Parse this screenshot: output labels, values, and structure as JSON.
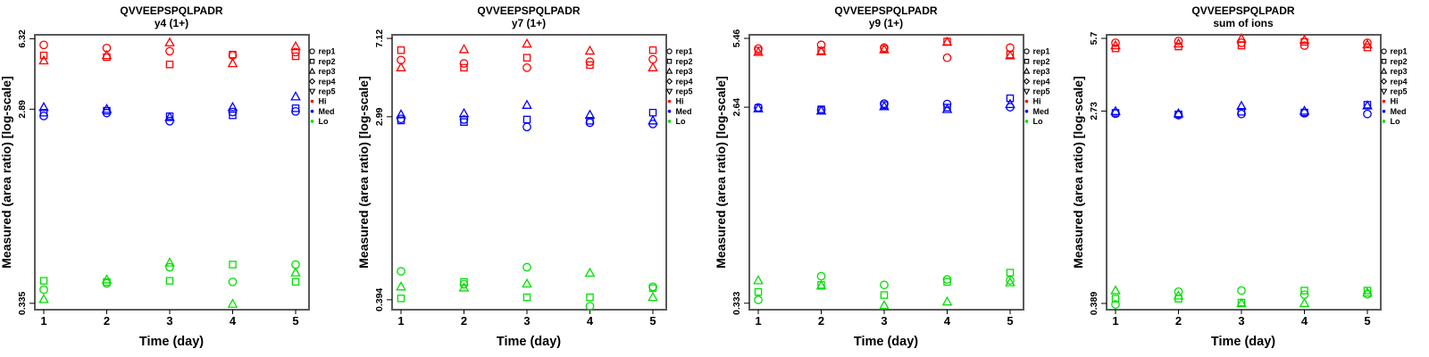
{
  "figure": {
    "x_axis_label": "Time (day)",
    "y_axis_label": "Measured (area ratio) [log-scale]",
    "x_tick_labels": [
      "1",
      "2",
      "3",
      "4",
      "5"
    ],
    "background_color": "#FFFFFF",
    "frame_color": "#5a5a5a"
  },
  "legend": {
    "reps": [
      {
        "label": "rep1",
        "marker": "circle"
      },
      {
        "label": "rep2",
        "marker": "square"
      },
      {
        "label": "rep3",
        "marker": "triangle-up"
      },
      {
        "label": "rep4",
        "marker": "diamond"
      },
      {
        "label": "rep5",
        "marker": "triangle-down"
      }
    ],
    "levels": [
      {
        "label": "Hi",
        "color": "#FF0000"
      },
      {
        "label": "Med",
        "color": "#0000FF"
      },
      {
        "label": "Lo",
        "color": "#00DF00"
      }
    ]
  },
  "chart_data": {
    "type": "scatter",
    "x": [
      1,
      2,
      3,
      4,
      5
    ],
    "xlabel": "Time (day)",
    "ylabel": "Measured (area ratio) [log-scale]",
    "log_scale_y": true,
    "grid": false,
    "legend_position": "right-outside-top",
    "marker_map": {
      "o": "circle (rep1)",
      "s": "square (rep2)",
      "t": "triangle (rep3)"
    },
    "point_format": "[day, marker, value]",
    "panels": [
      {
        "title": "QVVEEPSPQLPADR",
        "subtitle": "y4 (1+)",
        "ytick_labels": [
          "6.32",
          "2.89",
          "0.335"
        ],
        "yticks": [
          6.32,
          2.89,
          0.335
        ],
        "ylim": [
          0.312,
          6.6
        ],
        "points": {
          "Hi": [
            [
              1,
              "o",
              5.9
            ],
            [
              1,
              "s",
              5.25
            ],
            [
              1,
              "t",
              4.95
            ],
            [
              2,
              "o",
              5.7
            ],
            [
              2,
              "t",
              5.25
            ],
            [
              2,
              "s",
              5.15
            ],
            [
              3,
              "t",
              6.05
            ],
            [
              3,
              "o",
              5.5
            ],
            [
              3,
              "s",
              4.75
            ],
            [
              4,
              "s",
              5.3
            ],
            [
              4,
              "o",
              5.25
            ],
            [
              4,
              "t",
              4.8
            ],
            [
              5,
              "t",
              5.8
            ],
            [
              5,
              "o",
              5.45
            ],
            [
              5,
              "s",
              5.2
            ]
          ],
          "Med": [
            [
              1,
              "t",
              2.95
            ],
            [
              1,
              "s",
              2.78
            ],
            [
              1,
              "o",
              2.68
            ],
            [
              2,
              "t",
              2.89
            ],
            [
              2,
              "s",
              2.84
            ],
            [
              2,
              "o",
              2.77
            ],
            [
              3,
              "s",
              2.67
            ],
            [
              3,
              "t",
              2.64
            ],
            [
              3,
              "o",
              2.53
            ],
            [
              4,
              "t",
              2.95
            ],
            [
              4,
              "o",
              2.8
            ],
            [
              4,
              "s",
              2.7
            ],
            [
              5,
              "t",
              3.32
            ],
            [
              5,
              "s",
              2.92
            ],
            [
              5,
              "o",
              2.82
            ]
          ],
          "Lo": [
            [
              1,
              "s",
              0.43
            ],
            [
              1,
              "o",
              0.39
            ],
            [
              1,
              "t",
              0.35
            ],
            [
              2,
              "t",
              0.435
            ],
            [
              2,
              "s",
              0.424
            ],
            [
              2,
              "o",
              0.418
            ],
            [
              3,
              "t",
              0.525
            ],
            [
              3,
              "o",
              0.5
            ],
            [
              3,
              "s",
              0.43
            ],
            [
              4,
              "s",
              0.515
            ],
            [
              4,
              "o",
              0.425
            ],
            [
              4,
              "t",
              0.332
            ],
            [
              5,
              "o",
              0.515
            ],
            [
              5,
              "t",
              0.47
            ],
            [
              5,
              "s",
              0.425
            ]
          ]
        }
      },
      {
        "title": "QVVEEPSPQLPADR",
        "subtitle": "y7 (1+)",
        "ytick_labels": [
          "7.12",
          "2.99",
          "0.394"
        ],
        "yticks": [
          7.12,
          2.99,
          0.394
        ],
        "ylim": [
          0.353,
          7.41
        ],
        "points": {
          "Hi": [
            [
              1,
              "s",
              6.25
            ],
            [
              1,
              "o",
              5.6
            ],
            [
              1,
              "t",
              5.15
            ],
            [
              2,
              "t",
              6.3
            ],
            [
              2,
              "o",
              5.4
            ],
            [
              2,
              "s",
              5.15
            ],
            [
              3,
              "t",
              6.7
            ],
            [
              3,
              "s",
              5.75
            ],
            [
              3,
              "o",
              5.15
            ],
            [
              4,
              "t",
              6.2
            ],
            [
              4,
              "o",
              5.5
            ],
            [
              4,
              "s",
              5.3
            ],
            [
              5,
              "s",
              6.25
            ],
            [
              5,
              "o",
              5.65
            ],
            [
              5,
              "t",
              5.15
            ]
          ],
          "Med": [
            [
              1,
              "t",
              3.06
            ],
            [
              1,
              "o",
              2.92
            ],
            [
              1,
              "s",
              2.87
            ],
            [
              2,
              "t",
              3.1
            ],
            [
              2,
              "o",
              2.9
            ],
            [
              2,
              "s",
              2.82
            ],
            [
              3,
              "t",
              3.4
            ],
            [
              3,
              "s",
              2.9
            ],
            [
              3,
              "o",
              2.67
            ],
            [
              4,
              "t",
              3.05
            ],
            [
              4,
              "s",
              2.86
            ],
            [
              4,
              "o",
              2.8
            ],
            [
              5,
              "s",
              3.13
            ],
            [
              5,
              "t",
              2.86
            ],
            [
              5,
              "o",
              2.76
            ]
          ],
          "Lo": [
            [
              1,
              "o",
              0.54
            ],
            [
              1,
              "t",
              0.455
            ],
            [
              1,
              "s",
              0.4
            ],
            [
              2,
              "s",
              0.48
            ],
            [
              2,
              "o",
              0.468
            ],
            [
              2,
              "t",
              0.45
            ],
            [
              3,
              "o",
              0.565
            ],
            [
              3,
              "t",
              0.47
            ],
            [
              3,
              "s",
              0.405
            ],
            [
              4,
              "t",
              0.53
            ],
            [
              4,
              "s",
              0.405
            ],
            [
              4,
              "o",
              0.367
            ],
            [
              5,
              "o",
              0.455
            ],
            [
              5,
              "s",
              0.448
            ],
            [
              5,
              "t",
              0.405
            ]
          ]
        }
      },
      {
        "title": "QVVEEPSPQLPADR",
        "subtitle": "y9 (1+)",
        "ytick_labels": [
          "5.46",
          "2.64",
          "0.333"
        ],
        "yticks": [
          5.46,
          2.64,
          0.333
        ],
        "ylim": [
          0.311,
          5.67
        ],
        "points": {
          "Hi": [
            [
              1,
              "o",
              4.9
            ],
            [
              1,
              "s",
              4.8
            ],
            [
              1,
              "t",
              4.72
            ],
            [
              2,
              "o",
              5.1
            ],
            [
              2,
              "s",
              4.8
            ],
            [
              2,
              "t",
              4.75
            ],
            [
              3,
              "o",
              4.95
            ],
            [
              3,
              "s",
              4.88
            ],
            [
              3,
              "t",
              4.85
            ],
            [
              4,
              "s",
              5.28
            ],
            [
              4,
              "t",
              5.25
            ],
            [
              4,
              "o",
              4.45
            ],
            [
              5,
              "o",
              4.95
            ],
            [
              5,
              "s",
              4.6
            ],
            [
              5,
              "t",
              4.55
            ]
          ],
          "Med": [
            [
              1,
              "o",
              2.63
            ],
            [
              1,
              "s",
              2.62
            ],
            [
              1,
              "t",
              2.6
            ],
            [
              2,
              "s",
              2.58
            ],
            [
              2,
              "o",
              2.56
            ],
            [
              2,
              "t",
              2.54
            ],
            [
              3,
              "o",
              2.74
            ],
            [
              3,
              "s",
              2.7
            ],
            [
              3,
              "t",
              2.66
            ],
            [
              4,
              "o",
              2.73
            ],
            [
              4,
              "s",
              2.63
            ],
            [
              4,
              "t",
              2.58
            ],
            [
              5,
              "s",
              2.9
            ],
            [
              5,
              "t",
              2.72
            ],
            [
              5,
              "o",
              2.64
            ]
          ],
          "Lo": [
            [
              1,
              "t",
              0.423
            ],
            [
              1,
              "s",
              0.375
            ],
            [
              1,
              "o",
              0.345
            ],
            [
              2,
              "o",
              0.443
            ],
            [
              2,
              "s",
              0.404
            ],
            [
              2,
              "t",
              0.4
            ],
            [
              3,
              "o",
              0.404
            ],
            [
              3,
              "s",
              0.363
            ],
            [
              3,
              "t",
              0.325
            ],
            [
              4,
              "o",
              0.428
            ],
            [
              4,
              "s",
              0.417
            ],
            [
              4,
              "t",
              0.338
            ],
            [
              5,
              "s",
              0.46
            ],
            [
              5,
              "o",
              0.424
            ],
            [
              5,
              "t",
              0.414
            ]
          ]
        }
      },
      {
        "title": "QVVEEPSPQLPADR",
        "subtitle": "sum of ions",
        "ytick_labels": [
          "5.7",
          "2.73",
          "0.389"
        ],
        "yticks": [
          5.7,
          2.73,
          0.389
        ],
        "ylim": [
          0.365,
          5.91
        ],
        "points": {
          "Hi": [
            [
              1,
              "o",
              5.45
            ],
            [
              1,
              "t",
              5.3
            ],
            [
              1,
              "s",
              5.15
            ],
            [
              2,
              "o",
              5.55
            ],
            [
              2,
              "t",
              5.4
            ],
            [
              2,
              "s",
              5.25
            ],
            [
              3,
              "t",
              5.68
            ],
            [
              3,
              "o",
              5.45
            ],
            [
              3,
              "s",
              5.3
            ],
            [
              4,
              "t",
              5.6
            ],
            [
              4,
              "s",
              5.5
            ],
            [
              4,
              "o",
              5.3
            ],
            [
              5,
              "o",
              5.45
            ],
            [
              5,
              "t",
              5.35
            ],
            [
              5,
              "s",
              5.2
            ]
          ],
          "Med": [
            [
              1,
              "t",
              2.72
            ],
            [
              1,
              "s",
              2.68
            ],
            [
              1,
              "o",
              2.66
            ],
            [
              2,
              "t",
              2.66
            ],
            [
              2,
              "s",
              2.64
            ],
            [
              2,
              "o",
              2.62
            ],
            [
              3,
              "t",
              2.87
            ],
            [
              3,
              "s",
              2.71
            ],
            [
              3,
              "o",
              2.65
            ],
            [
              4,
              "t",
              2.73
            ],
            [
              4,
              "s",
              2.69
            ],
            [
              4,
              "o",
              2.67
            ],
            [
              5,
              "s",
              2.91
            ],
            [
              5,
              "t",
              2.88
            ],
            [
              5,
              "o",
              2.65
            ]
          ],
          "Lo": [
            [
              1,
              "t",
              0.443
            ],
            [
              1,
              "s",
              0.408
            ],
            [
              1,
              "o",
              0.385
            ],
            [
              2,
              "o",
              0.438
            ],
            [
              2,
              "t",
              0.42
            ],
            [
              2,
              "s",
              0.408
            ],
            [
              3,
              "o",
              0.443
            ],
            [
              3,
              "s",
              0.392
            ],
            [
              3,
              "t",
              0.389
            ],
            [
              4,
              "s",
              0.443
            ],
            [
              4,
              "o",
              0.425
            ],
            [
              4,
              "t",
              0.389
            ],
            [
              5,
              "s",
              0.443
            ],
            [
              5,
              "t",
              0.433
            ],
            [
              5,
              "o",
              0.427
            ]
          ]
        }
      }
    ]
  }
}
